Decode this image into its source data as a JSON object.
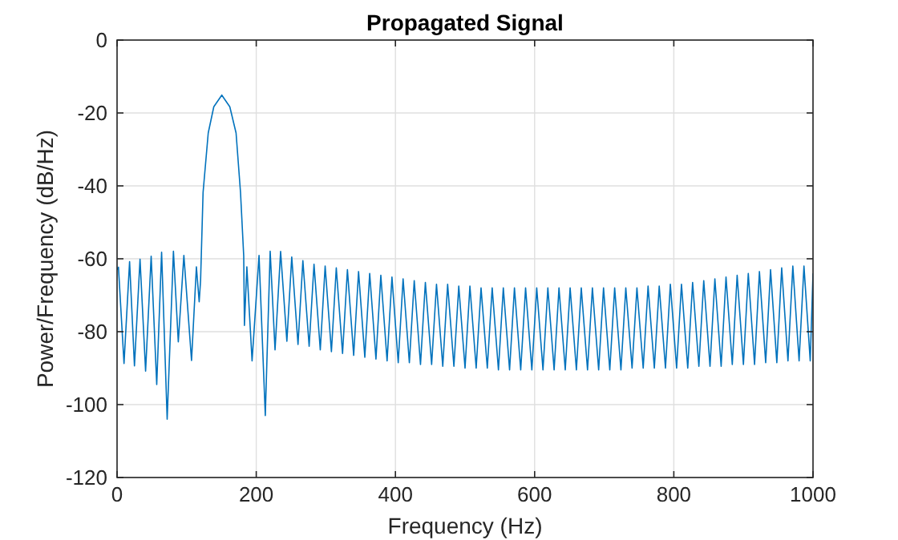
{
  "chart_data": {
    "type": "line",
    "title": "Propagated Signal",
    "xlabel": "Frequency (Hz)",
    "ylabel": "Power/Frequency (dB/Hz)",
    "xlim": [
      0,
      1000
    ],
    "xticks": [
      0,
      200,
      400,
      600,
      800,
      1000
    ],
    "ylim": [
      -120,
      0
    ],
    "yticks": [
      -120,
      -100,
      -80,
      -60,
      -40,
      -20,
      0
    ],
    "grid": true,
    "line_style": "solid",
    "series": [
      {
        "color": "#0072bd",
        "x": [
          0,
          2,
          10,
          18,
          25,
          33,
          41,
          49,
          57,
          64,
          72,
          81,
          88,
          96,
          107,
          114,
          118,
          120,
          123.6,
          131,
          139,
          150.5,
          162,
          171,
          177.4,
          182,
          183,
          186.5,
          194,
          204,
          213,
          220,
          227,
          235,
          244,
          251,
          260,
          267,
          276,
          283,
          292,
          299,
          308,
          315,
          324,
          331,
          340,
          347,
          356,
          363,
          372,
          379,
          388,
          395,
          404,
          411,
          420,
          427,
          436,
          443,
          452,
          459,
          468,
          475,
          484,
          491,
          500,
          507,
          516,
          523,
          532,
          539,
          548,
          555,
          564,
          571,
          580,
          587,
          596,
          603,
          612,
          619,
          628,
          635,
          644,
          651,
          660,
          667,
          676,
          683,
          692,
          699,
          708,
          715,
          724,
          731,
          740,
          747,
          756,
          763,
          772,
          779,
          788,
          795,
          804,
          811,
          820,
          827,
          836,
          843,
          852,
          859,
          868,
          875,
          884,
          891,
          900,
          907,
          916,
          923,
          932,
          939,
          948,
          955,
          964,
          971,
          980,
          987,
          996,
          1000
        ],
        "values": [
          -63,
          -62.3,
          -88.7,
          -60.8,
          -89.4,
          -60.1,
          -90.8,
          -59.3,
          -94.5,
          -58.2,
          -104,
          -57.9,
          -82.8,
          -59.1,
          -87.9,
          -62.2,
          -71.8,
          -66,
          -41.8,
          -25.5,
          -18.3,
          -15.1,
          -18.3,
          -25.5,
          -41.8,
          -59.3,
          -78.3,
          -62.2,
          -88,
          -59.1,
          -103,
          -57.9,
          -85,
          -58,
          -82.6,
          -59.5,
          -83.5,
          -60.5,
          -84,
          -61.5,
          -85,
          -62,
          -85.5,
          -62.5,
          -86,
          -63,
          -86.5,
          -63.5,
          -87,
          -64,
          -87.5,
          -64.5,
          -88,
          -65,
          -88.5,
          -65.5,
          -88.5,
          -66,
          -89,
          -66.5,
          -89,
          -67,
          -89.5,
          -67,
          -89.5,
          -67.5,
          -90,
          -67.5,
          -90,
          -68,
          -90,
          -68,
          -90.5,
          -68,
          -90.5,
          -68,
          -90.5,
          -68,
          -90.5,
          -68,
          -90.5,
          -68,
          -90.5,
          -68,
          -90.5,
          -68,
          -90.5,
          -68,
          -90.5,
          -68,
          -90.5,
          -68,
          -90.5,
          -68,
          -90.5,
          -68,
          -90,
          -68,
          -90,
          -67.5,
          -90,
          -67.5,
          -90,
          -67,
          -90,
          -67,
          -90,
          -66.5,
          -89.5,
          -66,
          -89.5,
          -65.5,
          -89.5,
          -65,
          -89,
          -64.5,
          -89,
          -64,
          -89,
          -63.5,
          -88.5,
          -63,
          -88.5,
          -62.5,
          -88,
          -62,
          -88,
          -62,
          -88,
          -64
        ]
      }
    ]
  }
}
